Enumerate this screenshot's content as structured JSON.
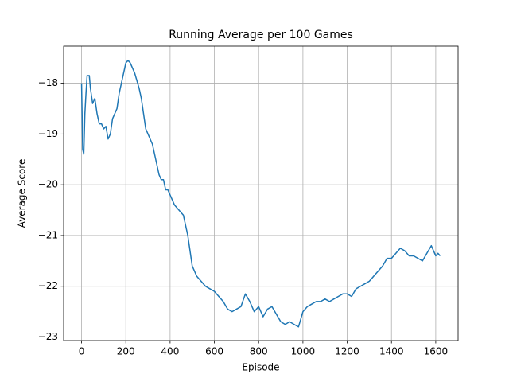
{
  "chart_data": {
    "type": "line",
    "title": "Running Average per 100 Games",
    "x_label": "Episode",
    "y_label": "Average Score",
    "x": [
      0,
      5,
      10,
      15,
      20,
      25,
      35,
      40,
      50,
      60,
      70,
      80,
      90,
      100,
      110,
      120,
      130,
      140,
      150,
      160,
      170,
      180,
      190,
      200,
      210,
      220,
      230,
      240,
      250,
      260,
      270,
      280,
      290,
      300,
      310,
      320,
      330,
      340,
      350,
      360,
      370,
      380,
      390,
      400,
      420,
      440,
      460,
      470,
      480,
      490,
      500,
      510,
      520,
      540,
      560,
      580,
      600,
      620,
      640,
      660,
      680,
      700,
      720,
      740,
      760,
      780,
      800,
      820,
      840,
      860,
      880,
      900,
      920,
      940,
      960,
      980,
      1000,
      1020,
      1040,
      1060,
      1080,
      1100,
      1120,
      1140,
      1160,
      1180,
      1200,
      1220,
      1240,
      1260,
      1280,
      1300,
      1320,
      1340,
      1360,
      1380,
      1400,
      1420,
      1440,
      1460,
      1480,
      1500,
      1520,
      1540,
      1560,
      1580,
      1590,
      1600,
      1610,
      1620
    ],
    "series": [
      {
        "name": "Running Average",
        "color": "#1f77b4",
        "values": [
          -18.0,
          -19.3,
          -19.4,
          -18.6,
          -18.2,
          -17.85,
          -17.85,
          -18.1,
          -18.4,
          -18.3,
          -18.6,
          -18.8,
          -18.8,
          -18.9,
          -18.85,
          -19.1,
          -19.0,
          -18.7,
          -18.6,
          -18.5,
          -18.2,
          -18.0,
          -17.8,
          -17.6,
          -17.55,
          -17.6,
          -17.7,
          -17.8,
          -17.95,
          -18.1,
          -18.3,
          -18.6,
          -18.9,
          -19.0,
          -19.1,
          -19.2,
          -19.4,
          -19.6,
          -19.8,
          -19.9,
          -19.9,
          -20.1,
          -20.1,
          -20.2,
          -20.4,
          -20.5,
          -20.6,
          -20.8,
          -21.0,
          -21.3,
          -21.6,
          -21.7,
          -21.8,
          -21.9,
          -22.0,
          -22.05,
          -22.1,
          -22.2,
          -22.3,
          -22.45,
          -22.5,
          -22.45,
          -22.4,
          -22.15,
          -22.3,
          -22.5,
          -22.4,
          -22.6,
          -22.45,
          -22.4,
          -22.55,
          -22.7,
          -22.75,
          -22.7,
          -22.75,
          -22.8,
          -22.5,
          -22.4,
          -22.35,
          -22.3,
          -22.3,
          -22.25,
          -22.3,
          -22.25,
          -22.2,
          -22.15,
          -22.15,
          -22.2,
          -22.05,
          -22.0,
          -21.95,
          -21.9,
          -21.8,
          -21.7,
          -21.6,
          -21.45,
          -21.45,
          -21.35,
          -21.25,
          -21.3,
          -21.4,
          -21.4,
          -21.45,
          -21.5,
          -21.35,
          -21.2,
          -21.3,
          -21.4,
          -21.35,
          -21.4
        ]
      }
    ],
    "xlim": [
      -81,
      1701
    ],
    "ylim": [
      -23.07,
      -17.27
    ],
    "xticks": [
      0,
      200,
      400,
      600,
      800,
      1000,
      1200,
      1400,
      1600
    ],
    "yticks": [
      {
        "value": -23,
        "label": "−23"
      },
      {
        "value": -22,
        "label": "−22"
      },
      {
        "value": -21,
        "label": "−21"
      },
      {
        "value": -20,
        "label": "−20"
      },
      {
        "value": -19,
        "label": "−19"
      },
      {
        "value": -18,
        "label": "−18"
      }
    ],
    "grid": true
  }
}
